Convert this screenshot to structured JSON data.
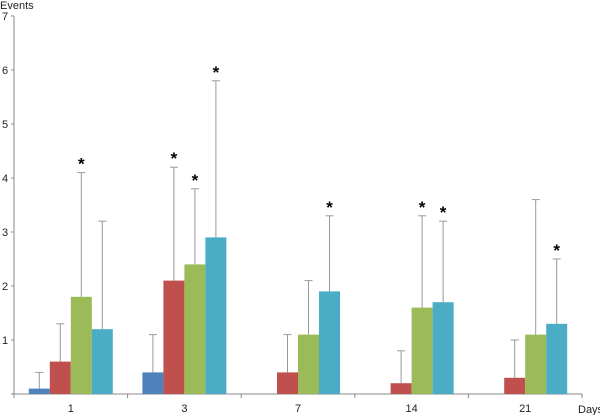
{
  "chart_data": {
    "type": "bar",
    "ylabel": "Events",
    "xlabel": "Days",
    "ylim": [
      0,
      7
    ],
    "yticks": [
      0,
      1,
      2,
      3,
      4,
      5,
      6,
      7
    ],
    "grid": false,
    "categories": [
      "1",
      "3",
      "7",
      "14",
      "21"
    ],
    "series": [
      {
        "color": "#4f81bd",
        "values": [
          0.1,
          0.4,
          0,
          0,
          0
        ],
        "errors": [
          0.3,
          0.7,
          0,
          0,
          0
        ],
        "significant": [
          false,
          false,
          false,
          false,
          false
        ]
      },
      {
        "color": "#c0504d",
        "values": [
          0.6,
          2.1,
          0.4,
          0.2,
          0.3
        ],
        "errors": [
          0.7,
          2.1,
          0.7,
          0.6,
          0.7
        ],
        "significant": [
          false,
          true,
          false,
          false,
          false
        ]
      },
      {
        "color": "#9bbb59",
        "values": [
          1.8,
          2.4,
          1.1,
          1.6,
          1.1
        ],
        "errors": [
          2.3,
          1.4,
          1.0,
          1.7,
          2.5
        ],
        "significant": [
          true,
          true,
          false,
          true,
          false
        ]
      },
      {
        "color": "#4bacc6",
        "values": [
          1.2,
          2.9,
          1.9,
          1.7,
          1.3
        ],
        "errors": [
          2.0,
          2.9,
          1.4,
          1.5,
          1.2
        ],
        "significant": [
          false,
          true,
          true,
          true,
          true
        ]
      }
    ],
    "significance_marker": "*"
  }
}
